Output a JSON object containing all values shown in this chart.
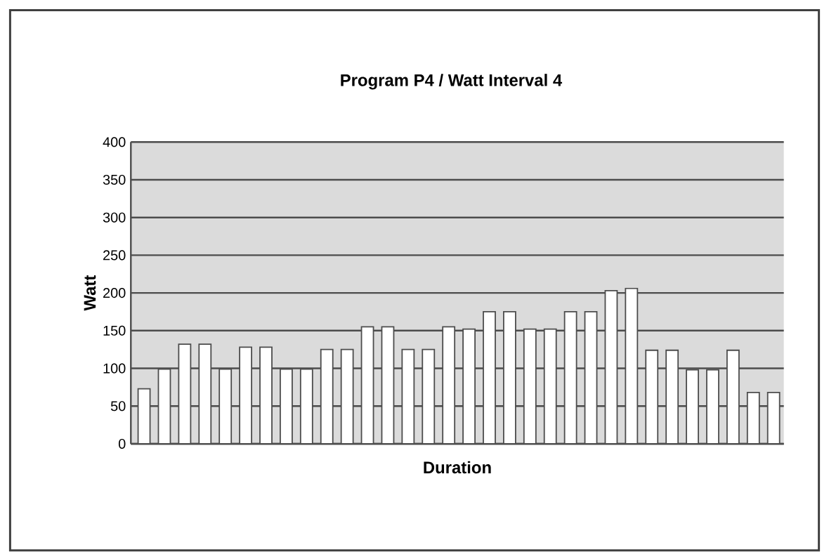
{
  "chart_data": {
    "type": "bar",
    "title": "Program P4 / Watt Interval 4",
    "xlabel": "Duration",
    "ylabel": "Watt",
    "categories": [
      null,
      null,
      null,
      null,
      null,
      null,
      null,
      null,
      null,
      null,
      null,
      null,
      null,
      null,
      null,
      null,
      null,
      null,
      null,
      null,
      null,
      null,
      null,
      null,
      null,
      null,
      null,
      null,
      null,
      null,
      null,
      null
    ],
    "values": [
      73,
      99,
      132,
      132,
      99,
      128,
      128,
      99,
      99,
      125,
      125,
      155,
      155,
      125,
      125,
      155,
      152,
      175,
      175,
      152,
      152,
      175,
      175,
      203,
      206,
      124,
      124,
      98,
      98,
      124,
      68,
      68
    ],
    "color": "#ffffff",
    "ylim": [
      0,
      400
    ],
    "yticks": [
      0,
      50,
      100,
      150,
      200,
      250,
      300,
      350,
      400
    ],
    "grid": "y"
  }
}
